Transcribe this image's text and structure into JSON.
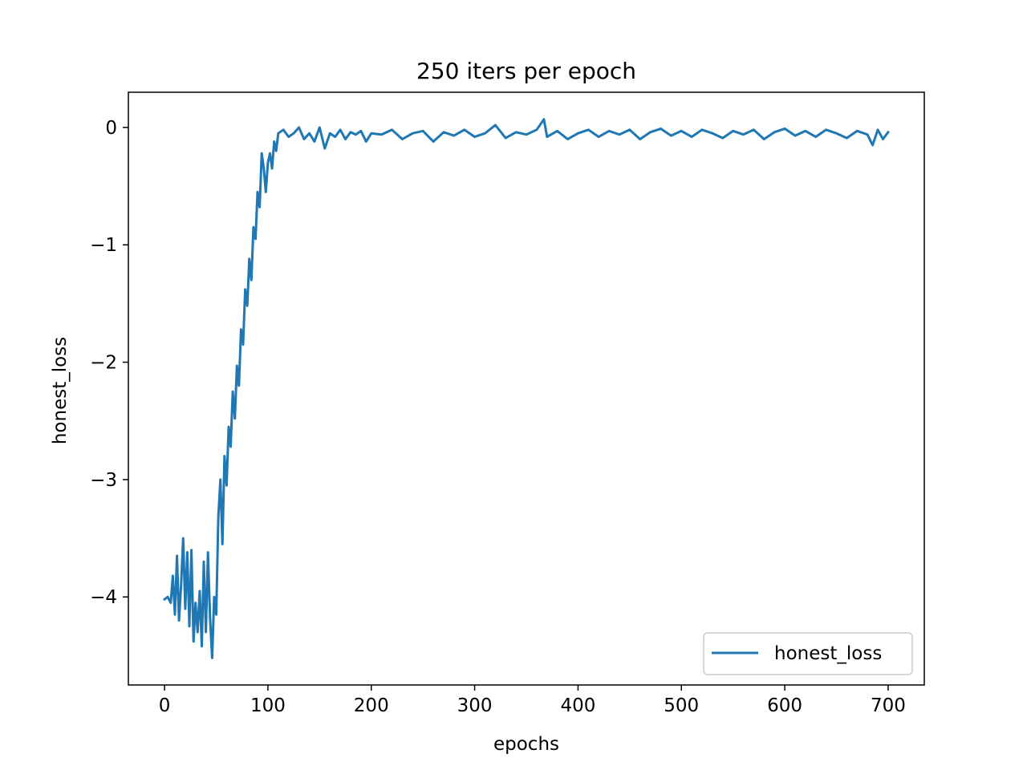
{
  "chart_data": {
    "type": "line",
    "title": "250 iters per epoch",
    "xlabel": "epochs",
    "ylabel": "honest_loss",
    "xlim": [
      -35,
      735
    ],
    "ylim": [
      -4.75,
      0.3
    ],
    "xticks": [
      0,
      100,
      200,
      300,
      400,
      500,
      600,
      700
    ],
    "yticks": [
      0,
      -1,
      -2,
      -3,
      -4
    ],
    "ytick_labels": [
      "0",
      "−1",
      "−2",
      "−3",
      "−4"
    ],
    "grid": false,
    "legend_position": "lower-right",
    "series": [
      {
        "name": "honest_loss",
        "color": "#1f77b4",
        "x": [
          0,
          3,
          6,
          8,
          10,
          12,
          14,
          16,
          18,
          20,
          22,
          24,
          26,
          28,
          30,
          32,
          34,
          36,
          38,
          40,
          42,
          44,
          46,
          48,
          50,
          52,
          54,
          56,
          58,
          60,
          62,
          64,
          66,
          68,
          70,
          72,
          74,
          76,
          78,
          80,
          82,
          84,
          86,
          88,
          90,
          92,
          94,
          96,
          98,
          100,
          102,
          104,
          106,
          108,
          110,
          115,
          120,
          125,
          130,
          135,
          140,
          145,
          150,
          155,
          160,
          165,
          170,
          175,
          180,
          185,
          190,
          195,
          200,
          210,
          220,
          230,
          240,
          250,
          260,
          270,
          280,
          290,
          300,
          310,
          320,
          330,
          340,
          350,
          360,
          367,
          370,
          380,
          390,
          400,
          410,
          420,
          430,
          440,
          450,
          460,
          470,
          480,
          490,
          500,
          510,
          520,
          530,
          540,
          550,
          560,
          570,
          580,
          590,
          600,
          610,
          620,
          630,
          640,
          650,
          660,
          670,
          680,
          685,
          690,
          695,
          700
        ],
        "y": [
          -4.02,
          -4.0,
          -4.05,
          -3.82,
          -4.15,
          -3.65,
          -4.2,
          -3.9,
          -3.5,
          -4.1,
          -3.62,
          -4.25,
          -3.6,
          -4.38,
          -4.05,
          -4.3,
          -3.95,
          -4.42,
          -3.7,
          -4.3,
          -3.62,
          -4.18,
          -4.52,
          -4.0,
          -4.15,
          -3.32,
          -3.0,
          -3.55,
          -2.8,
          -3.05,
          -2.55,
          -2.72,
          -2.25,
          -2.48,
          -2.03,
          -2.2,
          -1.72,
          -1.85,
          -1.38,
          -1.52,
          -1.12,
          -1.3,
          -0.85,
          -0.95,
          -0.55,
          -0.68,
          -0.22,
          -0.35,
          -0.55,
          -0.3,
          -0.22,
          -0.35,
          -0.12,
          -0.2,
          -0.05,
          -0.02,
          -0.08,
          -0.05,
          0.0,
          -0.1,
          -0.05,
          -0.12,
          0.0,
          -0.18,
          -0.05,
          -0.08,
          -0.02,
          -0.1,
          -0.04,
          -0.06,
          -0.03,
          -0.12,
          -0.05,
          -0.06,
          -0.02,
          -0.1,
          -0.05,
          -0.03,
          -0.12,
          -0.04,
          -0.07,
          -0.02,
          -0.08,
          -0.05,
          0.02,
          -0.09,
          -0.04,
          -0.06,
          -0.02,
          0.07,
          -0.08,
          -0.03,
          -0.1,
          -0.05,
          -0.02,
          -0.08,
          -0.03,
          -0.06,
          -0.02,
          -0.1,
          -0.04,
          -0.01,
          -0.07,
          -0.03,
          -0.08,
          -0.02,
          -0.05,
          -0.09,
          -0.03,
          -0.06,
          -0.02,
          -0.1,
          -0.04,
          -0.01,
          -0.07,
          -0.03,
          -0.08,
          -0.02,
          -0.05,
          -0.09,
          -0.03,
          -0.06,
          -0.15,
          -0.02,
          -0.1,
          -0.04
        ]
      }
    ]
  }
}
